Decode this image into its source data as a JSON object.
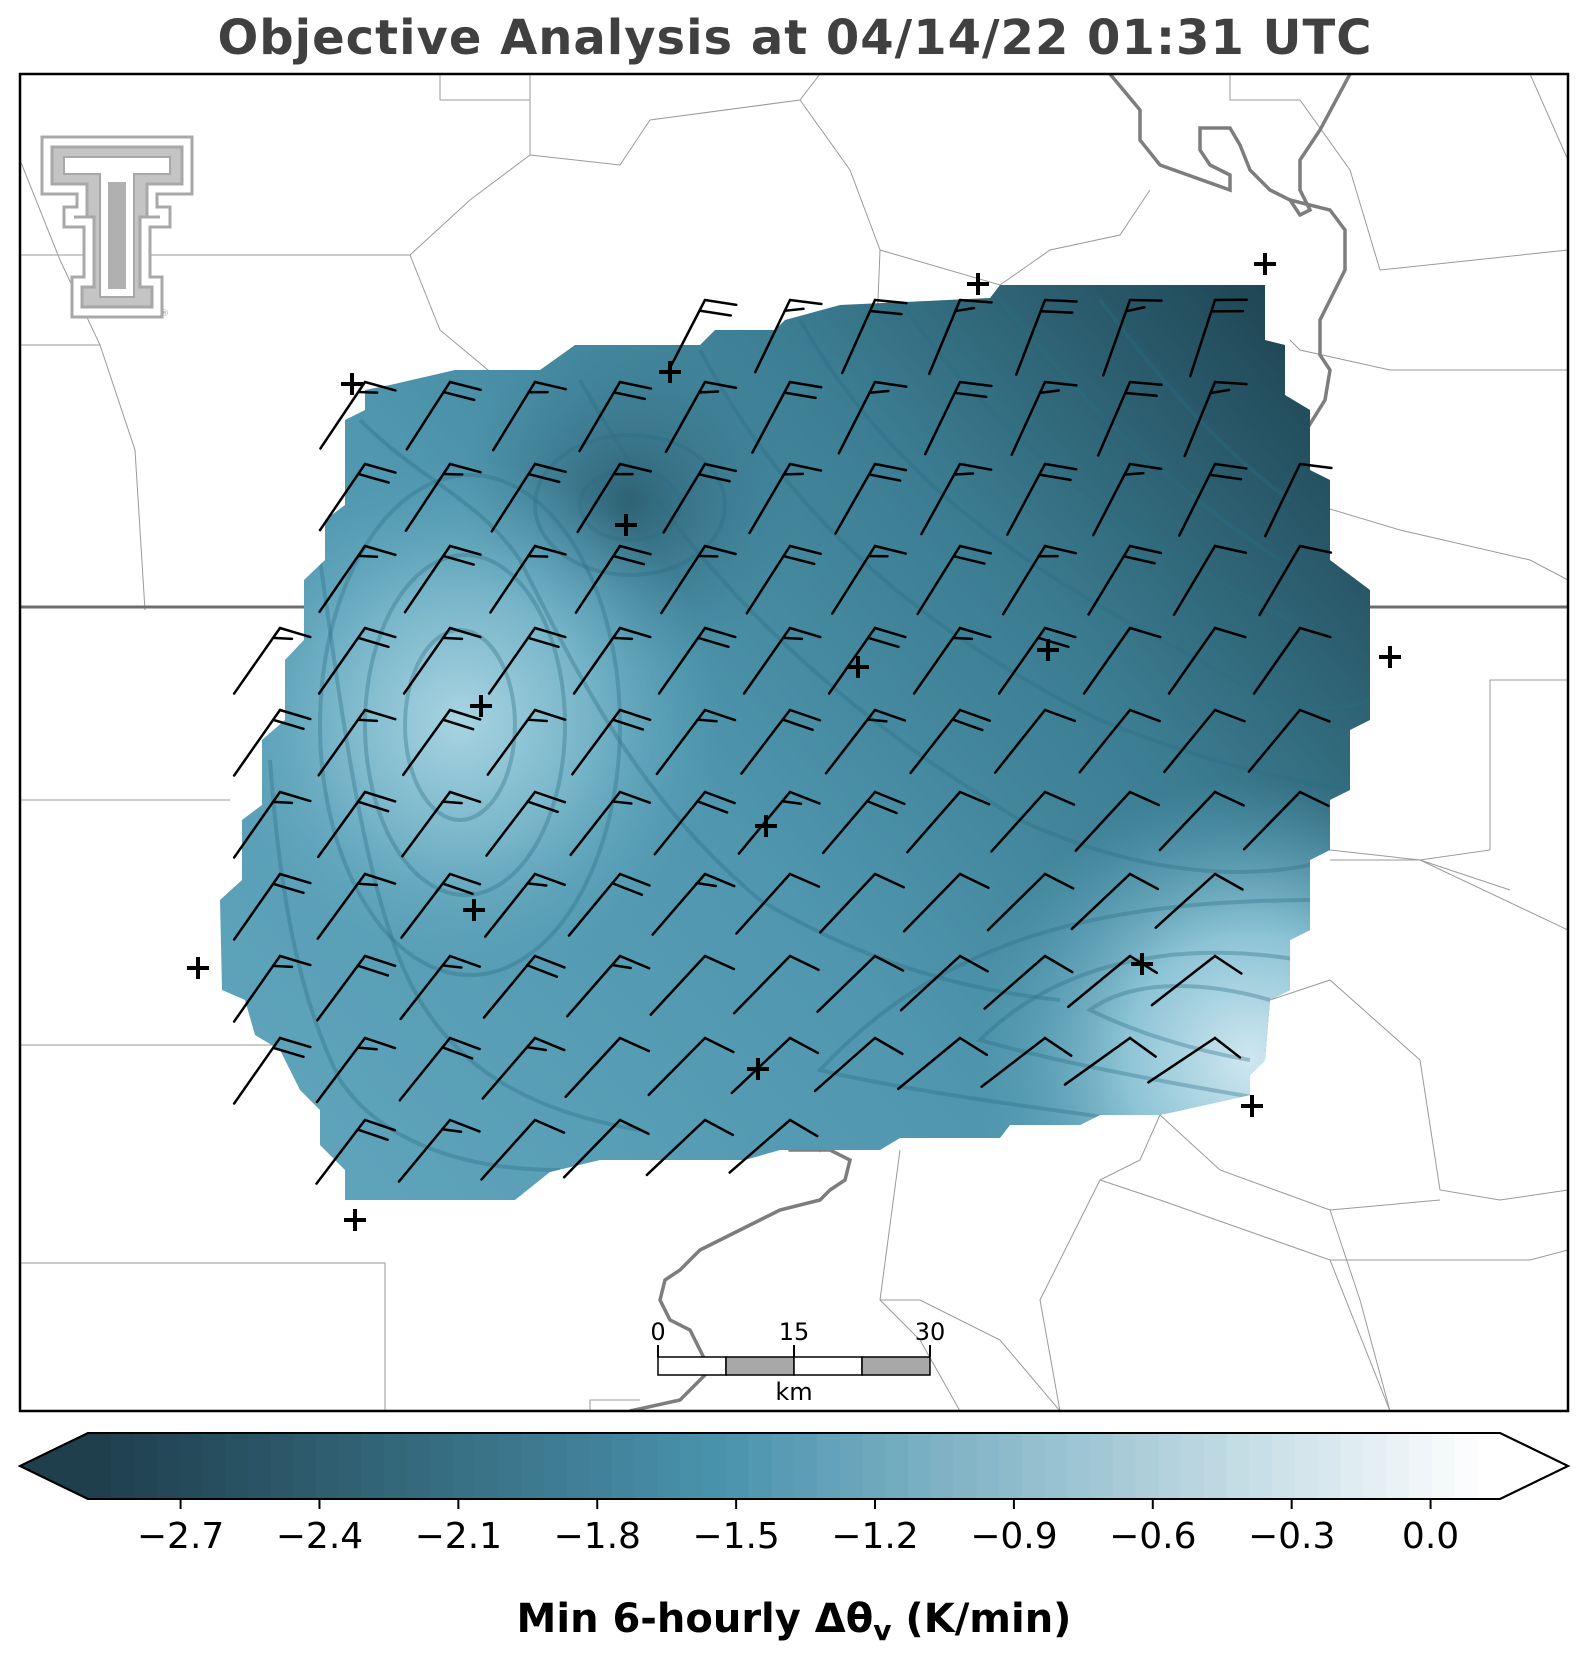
{
  "title": "Objective Analysis at 04/14/22 01:31 UTC",
  "colorbar": {
    "label_main": "Min 6-hourly Δθ",
    "label_sub": "v",
    "label_units": " (K/min)",
    "ticks": [
      "−2.7",
      "−2.4",
      "−2.1",
      "−1.8",
      "−1.5",
      "−1.2",
      "−0.9",
      "−0.6",
      "−0.3",
      "0.0"
    ],
    "tick_values": [
      -2.7,
      -2.4,
      -2.1,
      -1.8,
      -1.5,
      -1.2,
      -0.9,
      -0.6,
      -0.3,
      0.0
    ],
    "range": [
      -2.9,
      0.15
    ],
    "dark_color": "#1f3f4d",
    "mid_color": "#4a93ad",
    "light_color": "#ffffff"
  },
  "scale_bar": {
    "labels": [
      "0",
      "15",
      "30"
    ],
    "unit": "km"
  },
  "logo": {
    "name": "Texas Tech Double T",
    "color": "#a8a8a8"
  },
  "map_colors": {
    "state_line": "#6e6e6e",
    "county_line": "#9a9a9a",
    "river": "#7a7a7a",
    "barb": "#000000"
  }
}
